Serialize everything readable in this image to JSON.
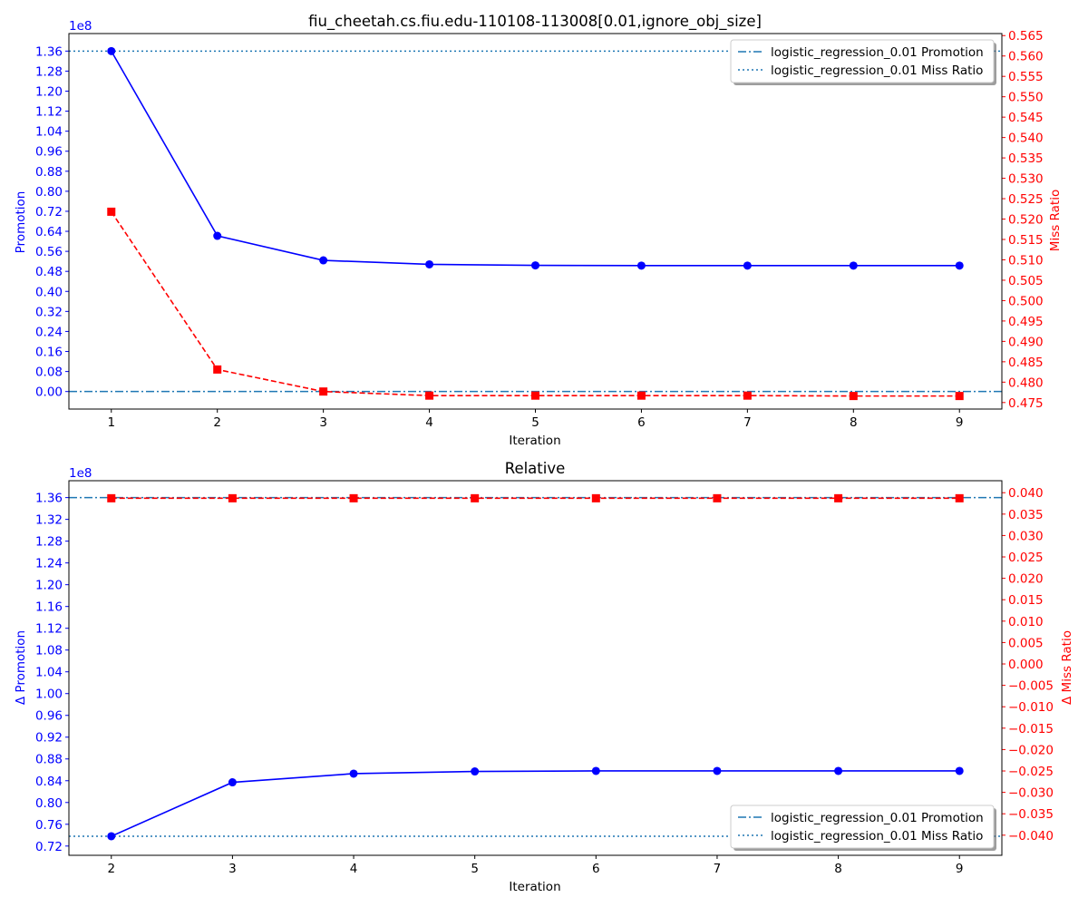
{
  "chart_data": [
    {
      "type": "line",
      "title": "fiu_cheetah.cs.fiu.edu-110108-113008[0.01,ignore_obj_size]",
      "xlabel": "Iteration",
      "ylabel": "Promotion",
      "y2label": "Miss Ratio",
      "y_offset_label": "1e8",
      "x_ticks": [
        1,
        2,
        3,
        4,
        5,
        6,
        7,
        8,
        9
      ],
      "y_ticks": [
        "0.00",
        "0.08",
        "0.16",
        "0.24",
        "0.32",
        "0.40",
        "0.48",
        "0.56",
        "0.64",
        "0.72",
        "0.80",
        "0.88",
        "0.96",
        "1.04",
        "1.12",
        "1.20",
        "1.28",
        "1.36"
      ],
      "y2_ticks": [
        "0.475",
        "0.480",
        "0.485",
        "0.490",
        "0.495",
        "0.500",
        "0.505",
        "0.510",
        "0.515",
        "0.520",
        "0.525",
        "0.530",
        "0.535",
        "0.540",
        "0.545",
        "0.550",
        "0.555",
        "0.560",
        "0.565"
      ],
      "xlim": [
        0.6,
        9.4
      ],
      "ylim": [
        -0.07,
        1.43
      ],
      "y2lim": [
        0.4734,
        0.5655
      ],
      "series": [
        {
          "axis": "left",
          "color": "#0000ff",
          "style": "solid",
          "marker": "circle",
          "x": [
            1,
            2,
            3,
            4,
            5,
            6,
            7,
            8,
            9
          ],
          "values": [
            1.36,
            0.622,
            0.524,
            0.508,
            0.504,
            0.503,
            0.503,
            0.503,
            0.503
          ]
        },
        {
          "axis": "right",
          "color": "#ff0000",
          "style": "dashed",
          "marker": "square",
          "x": [
            1,
            2,
            3,
            4,
            5,
            6,
            7,
            8,
            9
          ],
          "values": [
            0.5218,
            0.4831,
            0.4777,
            0.4767,
            0.4767,
            0.4767,
            0.4767,
            0.4766,
            0.4766
          ]
        }
      ],
      "reference_lines": [
        {
          "axis": "left",
          "value": 0.0,
          "style": "dashdot",
          "color": "#1f77b4"
        },
        {
          "axis": "left",
          "value": 1.36,
          "style": "dotted",
          "color": "#1f77b4"
        }
      ],
      "legend": {
        "position": "top-right",
        "entries": [
          {
            "label": "logistic_regression_0.01 Promotion",
            "style": "dashdot",
            "color": "#1f77b4"
          },
          {
            "label": "logistic_regression_0.01 Miss Ratio",
            "style": "dotted",
            "color": "#1f77b4"
          }
        ]
      }
    },
    {
      "type": "line",
      "title": "Relative",
      "xlabel": "Iteration",
      "ylabel": "Δ Promotion",
      "y2label": "Δ Miss Ratio",
      "y_offset_label": "1e8",
      "x_ticks": [
        2,
        3,
        4,
        5,
        6,
        7,
        8,
        9
      ],
      "y_ticks": [
        "0.72",
        "0.76",
        "0.80",
        "0.84",
        "0.88",
        "0.92",
        "0.96",
        "1.00",
        "1.04",
        "1.08",
        "1.12",
        "1.16",
        "1.20",
        "1.24",
        "1.28",
        "1.32",
        "1.36"
      ],
      "y2_ticks": [
        "−0.040",
        "−0.035",
        "−0.030",
        "−0.025",
        "−0.020",
        "−0.015",
        "−0.010",
        "−0.005",
        "0.000",
        "0.005",
        "0.010",
        "0.015",
        "0.020",
        "0.025",
        "0.030",
        "0.035",
        "0.040"
      ],
      "xlim": [
        1.65,
        9.35
      ],
      "ylim": [
        0.703,
        1.391
      ],
      "y2lim": [
        -0.0447,
        0.0428
      ],
      "series": [
        {
          "axis": "left",
          "color": "#0000ff",
          "style": "solid",
          "marker": "circle",
          "x": [
            2,
            3,
            4,
            5,
            6,
            7,
            8,
            9
          ],
          "values": [
            0.738,
            0.837,
            0.853,
            0.857,
            0.858,
            0.858,
            0.858,
            0.858
          ]
        },
        {
          "axis": "right",
          "color": "#ff0000",
          "style": "dashed",
          "marker": "square",
          "x": [
            2,
            3,
            4,
            5,
            6,
            7,
            8,
            9
          ],
          "values": [
            0.0387,
            0.0387,
            0.0387,
            0.0387,
            0.0387,
            0.0387,
            0.0387,
            0.0387
          ]
        }
      ],
      "reference_lines": [
        {
          "axis": "left",
          "value": 1.36,
          "style": "dashdot",
          "color": "#1f77b4"
        },
        {
          "axis": "left",
          "value": 0.738,
          "style": "dotted",
          "color": "#1f77b4"
        }
      ],
      "legend": {
        "position": "bottom-right",
        "entries": [
          {
            "label": "logistic_regression_0.01 Promotion",
            "style": "dashdot",
            "color": "#1f77b4"
          },
          {
            "label": "logistic_regression_0.01 Miss Ratio",
            "style": "dotted",
            "color": "#1f77b4"
          }
        ]
      }
    }
  ]
}
